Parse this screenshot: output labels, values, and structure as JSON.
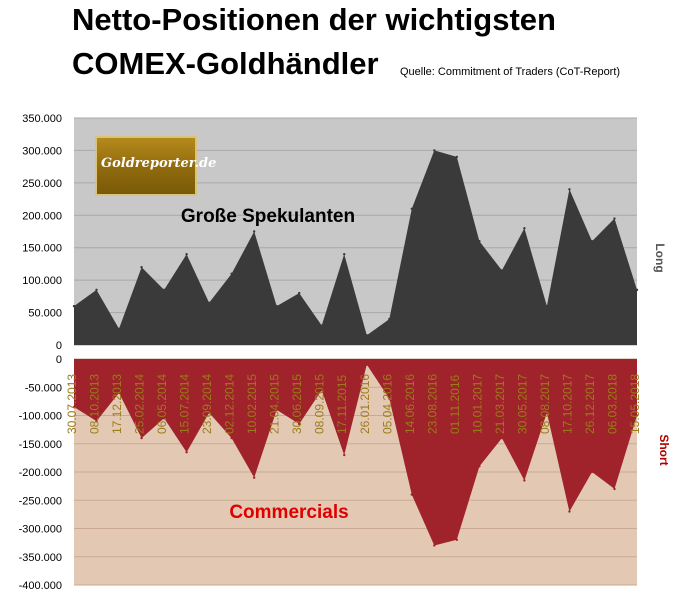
{
  "title_line1": "Netto-Positionen der wichtigsten",
  "title_line2": "COMEX-Goldhändler",
  "source": "Quelle: Commitment of Traders (CoT-Report)",
  "logo_text": "Goldreporter.de",
  "colors": {
    "long_fill": "#3a3a3a",
    "long_bg": "#c8c8c8",
    "short_fill": "#a0222a",
    "short_bg": "#e3c9b4",
    "date_label": "#9a7c1a",
    "short_label": "#b00000",
    "commercials_label": "#e00000"
  },
  "chart_data": [
    {
      "type": "area",
      "annotation": "Große Spekulanten",
      "ylabel": "Long",
      "ylim": [
        0,
        350000
      ],
      "yticks": [
        "0",
        "50.000",
        "100.000",
        "150.000",
        "200.000",
        "250.000",
        "300.000",
        "350.000"
      ],
      "grid": true,
      "x": [
        "30.07.2013",
        "08.10.2013",
        "17.12.2013",
        "25.02.2014",
        "06.05.2014",
        "15.07.2014",
        "23.09.2014",
        "02.12.2014",
        "10.02.2015",
        "21.04.2015",
        "30.06.2015",
        "08.09.2015",
        "17.11.2015",
        "26.01.2016",
        "05.04.2016",
        "14.06.2016",
        "23.08.2016",
        "01.11.2016",
        "10.01.2017",
        "21.03.2017",
        "30.05.2017",
        "08.08.2017",
        "17.10.2017",
        "26.12.2017",
        "06.03.2018",
        "15.05.2018"
      ],
      "values": [
        60000,
        85000,
        25000,
        120000,
        85000,
        140000,
        65000,
        110000,
        175000,
        60000,
        80000,
        30000,
        140000,
        15000,
        40000,
        210000,
        300000,
        290000,
        160000,
        115000,
        180000,
        60000,
        240000,
        160000,
        195000,
        85000
      ]
    },
    {
      "type": "area",
      "annotation": "Commercials",
      "ylabel": "Short",
      "ylim": [
        -400000,
        0
      ],
      "yticks": [
        "0",
        "-50.000",
        "-100.000",
        "-150.000",
        "-200.000",
        "-250.000",
        "-300.000",
        "-350.000",
        "-400.000"
      ],
      "grid": true,
      "x": [
        "30.07.2013",
        "08.10.2013",
        "17.12.2013",
        "25.02.2014",
        "06.05.2014",
        "15.07.2014",
        "23.09.2014",
        "02.12.2014",
        "10.02.2015",
        "21.04.2015",
        "30.06.2015",
        "08.09.2015",
        "17.11.2015",
        "26.01.2016",
        "05.04.2016",
        "14.06.2016",
        "23.08.2016",
        "01.11.2016",
        "10.01.2017",
        "21.03.2017",
        "30.05.2017",
        "08.08.2017",
        "17.10.2017",
        "26.12.2017",
        "06.03.2018",
        "15.05.2018"
      ],
      "values": [
        -85000,
        -110000,
        -60000,
        -140000,
        -105000,
        -165000,
        -95000,
        -140000,
        -210000,
        -90000,
        -115000,
        -55000,
        -170000,
        -10000,
        -70000,
        -240000,
        -330000,
        -320000,
        -190000,
        -140000,
        -215000,
        -95000,
        -270000,
        -200000,
        -230000,
        -100000
      ]
    }
  ]
}
